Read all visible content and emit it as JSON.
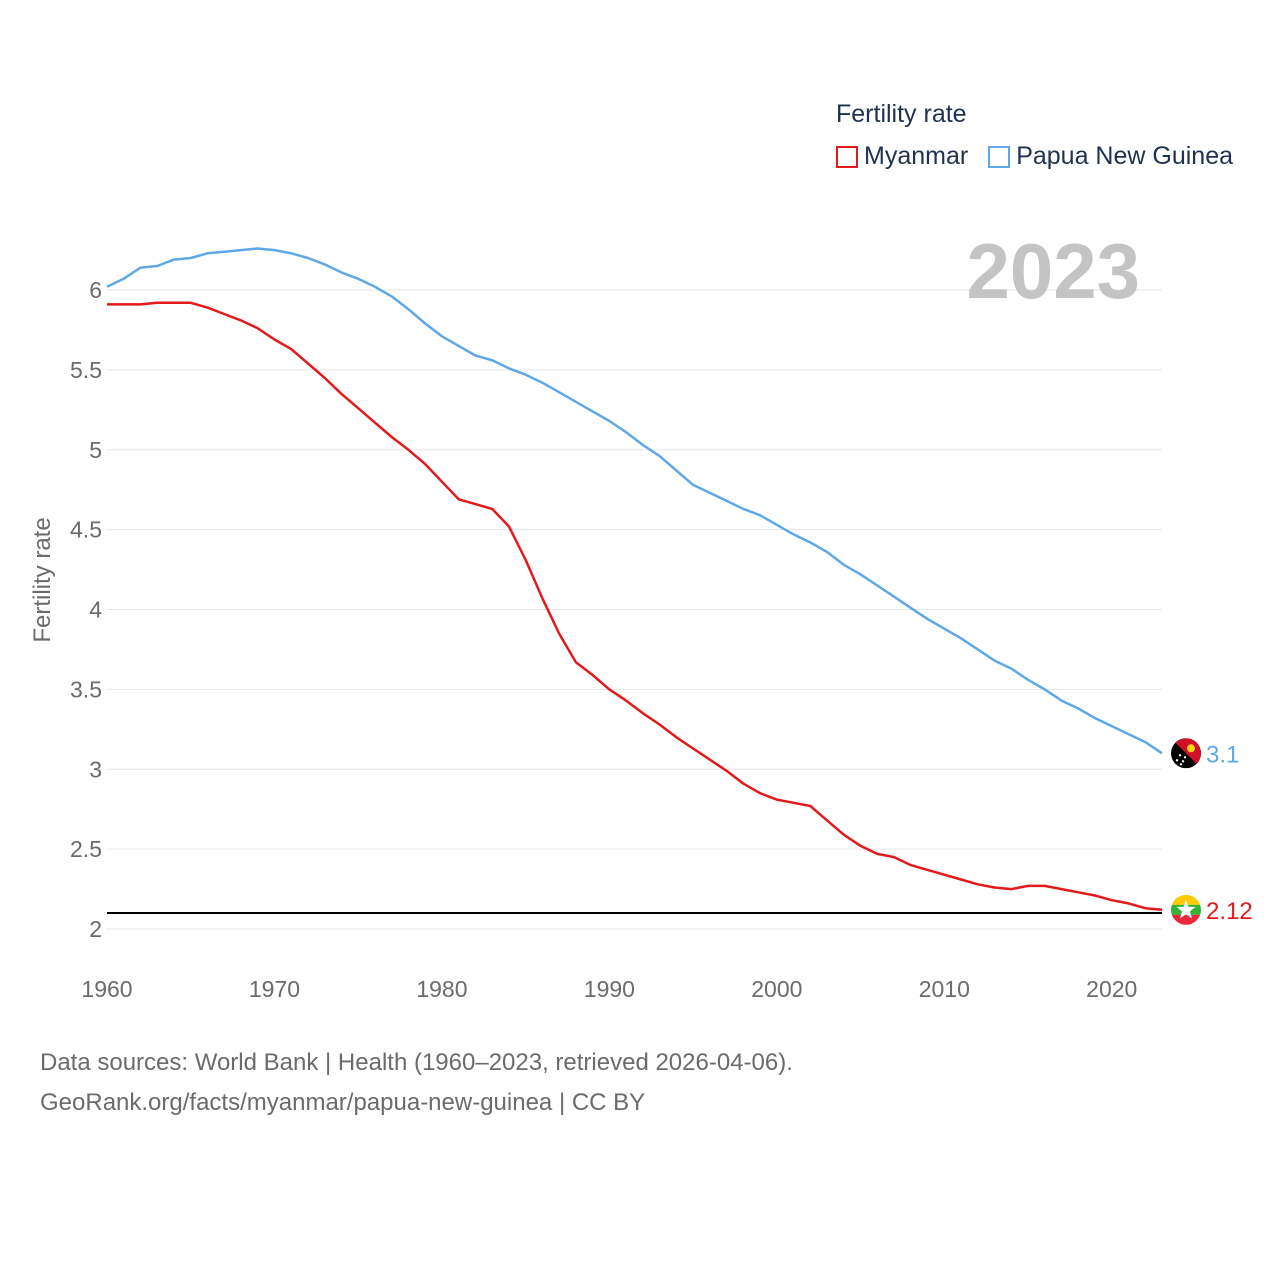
{
  "legend": {
    "title": "Fertility rate",
    "items": [
      {
        "name": "Myanmar",
        "color": "#e31a1c"
      },
      {
        "name": "Papua New Guinea",
        "color": "#5fa8e8"
      }
    ]
  },
  "current_year": "2023",
  "footer": {
    "line1": "Data sources: World Bank | Health (1960–2023, retrieved 2026-04-06).",
    "line2": "GeoRank.org/facts/myanmar/papua-new-guinea | CC BY"
  },
  "chart_data": {
    "type": "line",
    "title": "Fertility rate",
    "xlabel": "",
    "ylabel": "Fertility rate",
    "xlim": [
      1960,
      2023
    ],
    "ylim": [
      2,
      6
    ],
    "x_ticks": [
      1960,
      1970,
      1980,
      1990,
      2000,
      2010,
      2020
    ],
    "y_ticks": [
      2,
      2.5,
      3,
      3.5,
      4,
      4.5,
      5,
      5.5,
      6
    ],
    "y_tick_labels": [
      "2",
      "2.5",
      "3",
      "3.5",
      "4",
      "4.5",
      "5",
      "5.5",
      "6"
    ],
    "x_tick_labels": [
      "1960",
      "1970",
      "1980",
      "1990",
      "2000",
      "2010",
      "2020"
    ],
    "reference_line": {
      "y": 2.1,
      "color": "#000000"
    },
    "x": [
      1960,
      1961,
      1962,
      1963,
      1964,
      1965,
      1966,
      1967,
      1968,
      1969,
      1970,
      1971,
      1972,
      1973,
      1974,
      1975,
      1976,
      1977,
      1978,
      1979,
      1980,
      1981,
      1982,
      1983,
      1984,
      1985,
      1986,
      1987,
      1988,
      1989,
      1990,
      1991,
      1992,
      1993,
      1994,
      1995,
      1996,
      1997,
      1998,
      1999,
      2000,
      2001,
      2002,
      2003,
      2004,
      2005,
      2006,
      2007,
      2008,
      2009,
      2010,
      2011,
      2012,
      2013,
      2014,
      2015,
      2016,
      2017,
      2018,
      2019,
      2020,
      2021,
      2022,
      2023
    ],
    "series": [
      {
        "name": "Myanmar",
        "color": "#e31a1c",
        "end_label": "2.12",
        "values": [
          5.91,
          5.91,
          5.91,
          5.92,
          5.92,
          5.92,
          5.89,
          5.85,
          5.81,
          5.76,
          5.69,
          5.63,
          5.54,
          5.45,
          5.35,
          5.26,
          5.17,
          5.08,
          5.0,
          4.91,
          4.8,
          4.69,
          4.66,
          4.63,
          4.52,
          4.31,
          4.07,
          3.85,
          3.67,
          3.59,
          3.5,
          3.43,
          3.35,
          3.28,
          3.2,
          3.13,
          3.06,
          2.99,
          2.91,
          2.85,
          2.81,
          2.79,
          2.77,
          2.68,
          2.59,
          2.52,
          2.47,
          2.45,
          2.4,
          2.37,
          2.34,
          2.31,
          2.28,
          2.26,
          2.25,
          2.27,
          2.27,
          2.25,
          2.23,
          2.21,
          2.18,
          2.16,
          2.13,
          2.12
        ]
      },
      {
        "name": "Papua New Guinea",
        "color": "#5fa8e8",
        "end_label": "3.1",
        "values": [
          6.02,
          6.07,
          6.14,
          6.15,
          6.19,
          6.2,
          6.23,
          6.24,
          6.25,
          6.26,
          6.25,
          6.23,
          6.2,
          6.16,
          6.11,
          6.07,
          6.02,
          5.96,
          5.88,
          5.79,
          5.71,
          5.65,
          5.59,
          5.56,
          5.51,
          5.47,
          5.42,
          5.36,
          5.3,
          5.24,
          5.18,
          5.11,
          5.03,
          4.96,
          4.87,
          4.78,
          4.73,
          4.68,
          4.63,
          4.59,
          4.53,
          4.47,
          4.42,
          4.36,
          4.28,
          4.22,
          4.15,
          4.08,
          4.01,
          3.94,
          3.88,
          3.82,
          3.75,
          3.68,
          3.63,
          3.56,
          3.5,
          3.43,
          3.38,
          3.32,
          3.27,
          3.22,
          3.17,
          3.1
        ]
      }
    ]
  }
}
